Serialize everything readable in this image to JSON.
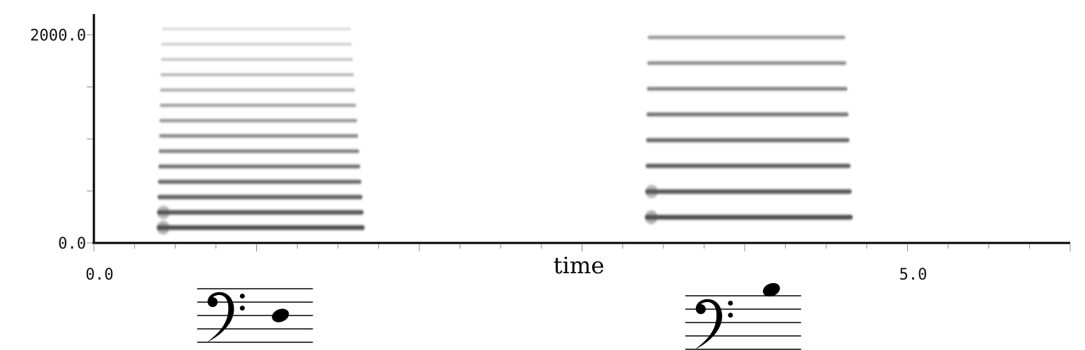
{
  "chart_data": {
    "type": "spectrogram",
    "title": "",
    "xlabel": "time",
    "ylabel": "",
    "xlim": [
      0.0,
      6.0
    ],
    "ylim": [
      0.0,
      2200.0
    ],
    "x_tick_labels": [
      {
        "value": 0.0,
        "label": "0.0"
      },
      {
        "value": 5.0,
        "label": "5.0"
      }
    ],
    "y_tick_labels": [
      {
        "value": 0.0,
        "label": "0.0"
      },
      {
        "value": 2000.0,
        "label": "2000.0"
      }
    ],
    "x_minor_step": 0.25,
    "y_minor_step": 500.0,
    "notes": [
      {
        "name": "note-1",
        "onset": 0.4,
        "offset": 1.65,
        "fundamental": 147,
        "harmonic_count": 15,
        "staff_note": "D3"
      },
      {
        "name": "note-2",
        "onset": 3.4,
        "offset": 4.65,
        "fundamental": 247,
        "harmonic_count": 8,
        "staff_note": "B3"
      }
    ]
  }
}
